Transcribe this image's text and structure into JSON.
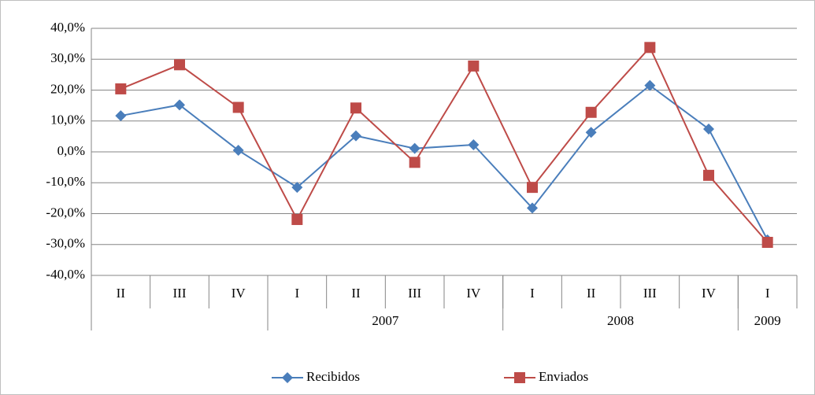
{
  "chart_data": {
    "type": "line",
    "categories": [
      "II",
      "III",
      "IV",
      "I",
      "II",
      "III",
      "IV",
      "I",
      "II",
      "III",
      "IV",
      "I"
    ],
    "x_groups": [
      {
        "label": null,
        "count": 3
      },
      {
        "label": "2007",
        "count": 4
      },
      {
        "label": "2008",
        "count": 4
      },
      {
        "label": "2009",
        "count": 1
      }
    ],
    "series": [
      {
        "name": "Recibidos",
        "color": "#4a7ebb",
        "marker": "diamond",
        "values": [
          11.7,
          15.2,
          0.5,
          -11.5,
          5.2,
          1.1,
          2.3,
          -18.2,
          6.3,
          21.5,
          7.4,
          -28.5
        ]
      },
      {
        "name": "Enviados",
        "color": "#be4b48",
        "marker": "square",
        "values": [
          20.4,
          28.2,
          14.4,
          -21.9,
          14.2,
          -3.4,
          27.8,
          -11.5,
          12.8,
          33.8,
          -7.6,
          -29.3
        ]
      }
    ],
    "ylim": [
      -40,
      40
    ],
    "yticks": [
      {
        "value": -40,
        "label": "-40,0%"
      },
      {
        "value": -30,
        "label": "-30,0%"
      },
      {
        "value": -20,
        "label": "-20,0%"
      },
      {
        "value": -10,
        "label": "-10,0%"
      },
      {
        "value": 0,
        "label": "0,0%"
      },
      {
        "value": 10,
        "label": "10,0%"
      },
      {
        "value": 20,
        "label": "20,0%"
      },
      {
        "value": 30,
        "label": "30,0%"
      },
      {
        "value": 40,
        "label": "40,0%"
      }
    ],
    "grid": true,
    "legend": "bottom"
  }
}
